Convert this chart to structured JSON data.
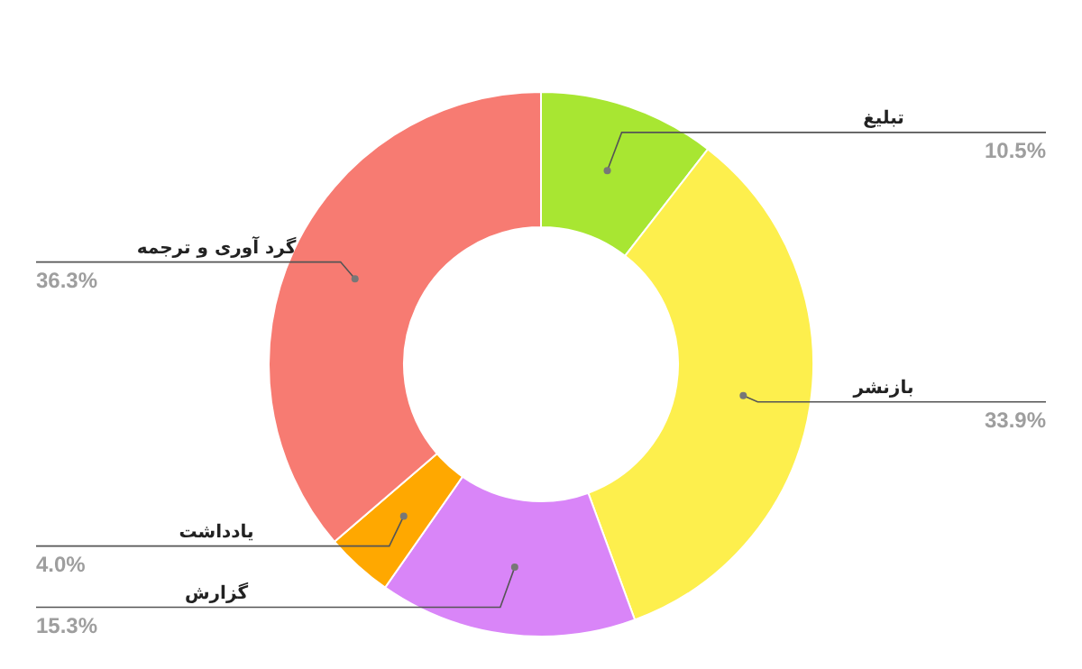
{
  "chart_data": {
    "type": "donut",
    "categories": [
      "تبلیغ",
      "بازنشر",
      "گزارش",
      "یادداشت",
      "گرد آوری و ترجمه"
    ],
    "values": [
      10.5,
      33.9,
      15.3,
      4.0,
      36.3
    ],
    "colors": [
      "#a8e632",
      "#fdef4d",
      "#d985f8",
      "#ffa800",
      "#f77b72"
    ],
    "value_labels": [
      "10.5%",
      "33.9%",
      "15.3%",
      "4.0%",
      "36.3%"
    ]
  }
}
